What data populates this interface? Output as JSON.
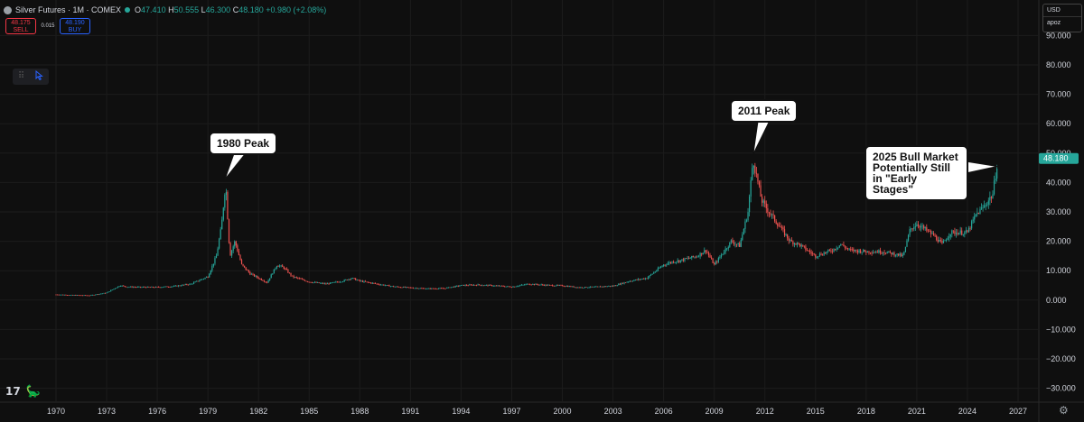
{
  "header": {
    "symbol": "Silver Futures · 1M · COMEX",
    "o_label": "O",
    "o": "47.410",
    "h_label": "H",
    "h": "50.555",
    "l_label": "L",
    "l": "46.300",
    "c_label": "C",
    "c": "48.180",
    "change": "+0.980 (+2.08%)"
  },
  "trade": {
    "sell_price": "48.175",
    "sell_label": "SELL",
    "spread": "0.015",
    "buy_price": "48.190",
    "buy_label": "BUY"
  },
  "currency": {
    "unit": "USD",
    "user": "apoz"
  },
  "colors": {
    "up": "#26a69a",
    "down": "#ef5350",
    "background": "#0f0f0f",
    "grid": "#1c1c1c"
  },
  "icons": {
    "drag": "drag-handle-icon",
    "cursor": "cursor-arrow-icon",
    "logo": "tradingview-logo-icon",
    "dino": "dino-icon",
    "settings": "gear-icon"
  },
  "chart_data": {
    "type": "candlestick",
    "title": "Silver Futures · 1M · COMEX",
    "xlabel": "",
    "ylabel": "",
    "x_ticks": [
      "1970",
      "1973",
      "1976",
      "1979",
      "1982",
      "1985",
      "1988",
      "1991",
      "1994",
      "1997",
      "2000",
      "2003",
      "2006",
      "2009",
      "2012",
      "2015",
      "2018",
      "2021",
      "2024",
      "2027"
    ],
    "y_ticks": [
      "90.000",
      "80.000",
      "70.000",
      "60.000",
      "50.000",
      "40.000",
      "30.000",
      "20.000",
      "10.000",
      "0.000",
      "−10.000",
      "−20.000",
      "−30.000"
    ],
    "y_tick_values": [
      90,
      80,
      70,
      60,
      50,
      40,
      30,
      20,
      10,
      0,
      -10,
      -20,
      -30
    ],
    "xlim": [
      1970,
      2027
    ],
    "ylim": [
      -30,
      90
    ],
    "grid": true,
    "series": [
      {
        "name": "Silver Futures",
        "x": [
          1970.0,
          1971.0,
          1972.0,
          1973.0,
          1973.8,
          1974.2,
          1975.0,
          1976.0,
          1977.0,
          1978.0,
          1979.0,
          1979.5,
          1979.8,
          1980.05,
          1980.3,
          1980.6,
          1981.0,
          1981.5,
          1982.5,
          1983.1,
          1983.5,
          1984.0,
          1985.0,
          1986.0,
          1987.0,
          1987.5,
          1988.0,
          1989.0,
          1990.0,
          1991.0,
          1992.0,
          1993.0,
          1994.0,
          1995.0,
          1996.0,
          1997.0,
          1998.0,
          1999.0,
          2000.0,
          2001.0,
          2002.0,
          2003.0,
          2004.0,
          2005.0,
          2006.0,
          2006.5,
          2007.0,
          2008.0,
          2008.5,
          2009.0,
          2010.0,
          2010.5,
          2011.0,
          2011.3,
          2011.8,
          2012.0,
          2012.5,
          2013.0,
          2013.5,
          2014.0,
          2015.0,
          2016.0,
          2016.5,
          2017.0,
          2018.0,
          2019.0,
          2020.2,
          2020.6,
          2021.0,
          2022.0,
          2022.5,
          2023.0,
          2024.0,
          2024.5,
          2025.0,
          2025.5,
          2025.8
        ],
        "y": [
          1.9,
          1.7,
          1.6,
          2.5,
          5.0,
          4.5,
          4.4,
          4.4,
          4.7,
          5.5,
          8.0,
          15.0,
          25.0,
          40.0,
          15.0,
          20.0,
          12.0,
          9.0,
          6.0,
          12.0,
          11.0,
          8.0,
          6.2,
          5.5,
          6.5,
          7.5,
          6.5,
          5.5,
          4.6,
          4.2,
          3.9,
          4.0,
          5.0,
          5.2,
          4.9,
          4.5,
          5.5,
          5.1,
          4.9,
          4.3,
          4.5,
          4.8,
          6.5,
          7.5,
          12.0,
          13.0,
          13.5,
          15.0,
          17.0,
          12.0,
          20.0,
          18.5,
          30.0,
          48.0,
          34.0,
          32.0,
          28.0,
          24.0,
          20.0,
          19.0,
          15.0,
          17.0,
          19.0,
          17.0,
          16.5,
          16.5,
          15.0,
          24.0,
          26.0,
          22.0,
          19.0,
          23.0,
          23.0,
          29.0,
          32.0,
          36.0,
          48.2
        ]
      }
    ],
    "annotations": [
      {
        "text": "1980 Peak",
        "x": 1980.0,
        "y": 41.0
      },
      {
        "text": "2011 Peak",
        "x": 2011.3,
        "y": 49.5
      },
      {
        "text": "2025 Bull Market Potentially Still in \"Early Stages\"",
        "x": 2025.8,
        "y": 45.5
      }
    ]
  }
}
